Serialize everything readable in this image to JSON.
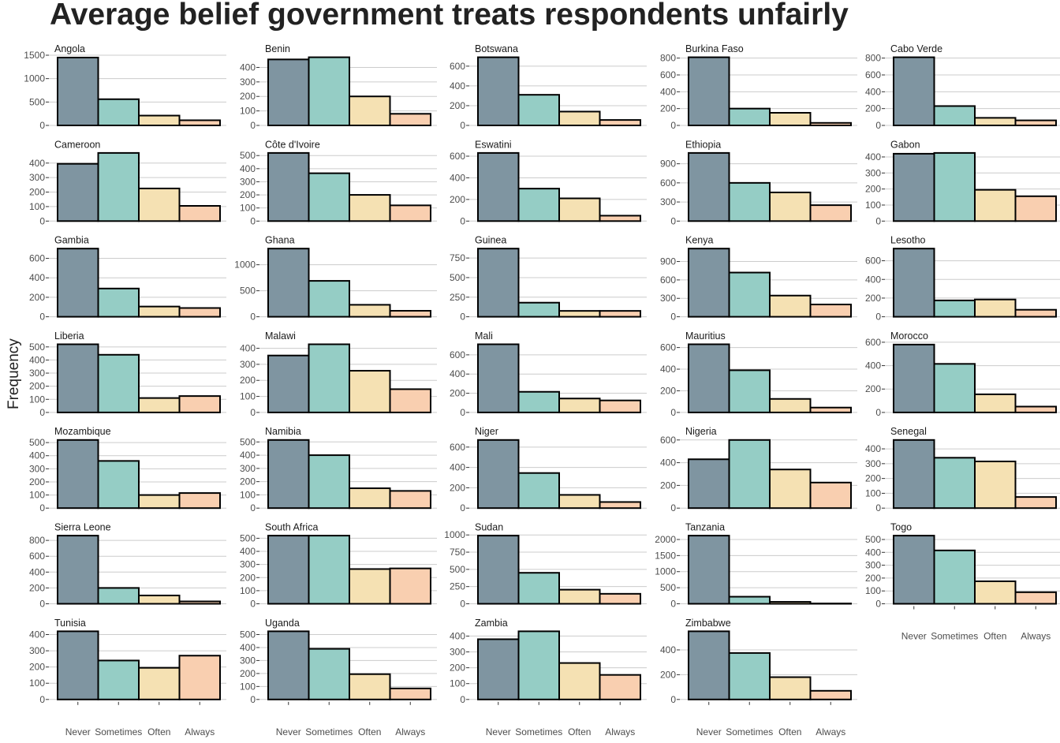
{
  "chart_data": {
    "type": "bar",
    "title": "Average belief government treats respondents unfairly",
    "xlabel": "",
    "ylabel": "Frequency",
    "categories": [
      "Never",
      "Sometimes",
      "Often",
      "Always"
    ],
    "colors": [
      "#7f95a1",
      "#95cdc5",
      "#f5e1b3",
      "#f9cfb0"
    ],
    "grid": "horizontal major",
    "facet_columns": 5,
    "facets": [
      {
        "name": "Angola",
        "values": [
          1450,
          560,
          210,
          110
        ],
        "yticks": [
          0,
          500,
          1000,
          1500
        ]
      },
      {
        "name": "Benin",
        "values": [
          455,
          470,
          200,
          80
        ],
        "yticks": [
          0,
          100,
          200,
          300,
          400
        ]
      },
      {
        "name": "Botswana",
        "values": [
          690,
          310,
          140,
          55
        ],
        "yticks": [
          0,
          200,
          400,
          600
        ]
      },
      {
        "name": "Burkina Faso",
        "values": [
          810,
          200,
          150,
          30
        ],
        "yticks": [
          0,
          200,
          400,
          600,
          800
        ]
      },
      {
        "name": "Cabo Verde",
        "values": [
          810,
          230,
          90,
          60
        ],
        "yticks": [
          0,
          200,
          400,
          600,
          800
        ]
      },
      {
        "name": "Cameroon",
        "values": [
          395,
          470,
          225,
          105
        ],
        "yticks": [
          0,
          100,
          200,
          300,
          400
        ]
      },
      {
        "name": "Côte d'Ivoire",
        "values": [
          520,
          365,
          200,
          120
        ],
        "yticks": [
          0,
          100,
          200,
          300,
          400,
          500
        ]
      },
      {
        "name": "Eswatini",
        "values": [
          630,
          300,
          210,
          50
        ],
        "yticks": [
          0,
          200,
          400,
          600
        ]
      },
      {
        "name": "Ethiopia",
        "values": [
          1070,
          600,
          450,
          250
        ],
        "yticks": [
          0,
          300,
          600,
          900
        ]
      },
      {
        "name": "Gabon",
        "values": [
          420,
          425,
          195,
          155
        ],
        "yticks": [
          0,
          100,
          200,
          300,
          400
        ]
      },
      {
        "name": "Gambia",
        "values": [
          700,
          290,
          105,
          90
        ],
        "yticks": [
          0,
          200,
          400,
          600
        ]
      },
      {
        "name": "Ghana",
        "values": [
          1310,
          690,
          230,
          115
        ],
        "yticks": [
          0,
          500,
          1000
        ]
      },
      {
        "name": "Guinea",
        "values": [
          870,
          180,
          75,
          75
        ],
        "yticks": [
          0,
          250,
          500,
          750
        ]
      },
      {
        "name": "Kenya",
        "values": [
          1110,
          720,
          345,
          200
        ],
        "yticks": [
          0,
          300,
          600,
          900
        ]
      },
      {
        "name": "Lesotho",
        "values": [
          730,
          175,
          185,
          75
        ],
        "yticks": [
          0,
          200,
          400,
          600
        ]
      },
      {
        "name": "Liberia",
        "values": [
          520,
          440,
          110,
          125
        ],
        "yticks": [
          0,
          100,
          200,
          300,
          400,
          500
        ]
      },
      {
        "name": "Malawi",
        "values": [
          355,
          425,
          260,
          145
        ],
        "yticks": [
          0,
          100,
          200,
          300,
          400
        ]
      },
      {
        "name": "Mali",
        "values": [
          710,
          215,
          145,
          125
        ],
        "yticks": [
          0,
          200,
          400,
          600
        ]
      },
      {
        "name": "Mauritius",
        "values": [
          630,
          390,
          125,
          45
        ],
        "yticks": [
          0,
          200,
          400,
          600
        ]
      },
      {
        "name": "Morocco",
        "values": [
          580,
          415,
          155,
          50
        ],
        "yticks": [
          0,
          200,
          400,
          600
        ]
      },
      {
        "name": "Mozambique",
        "values": [
          520,
          360,
          100,
          115
        ],
        "yticks": [
          0,
          100,
          200,
          300,
          400,
          500
        ]
      },
      {
        "name": "Namibia",
        "values": [
          515,
          400,
          150,
          130
        ],
        "yticks": [
          0,
          100,
          200,
          300,
          400,
          500
        ]
      },
      {
        "name": "Niger",
        "values": [
          670,
          345,
          130,
          60
        ],
        "yticks": [
          0,
          200,
          400,
          600
        ]
      },
      {
        "name": "Nigeria",
        "values": [
          430,
          600,
          340,
          225
        ],
        "yticks": [
          0,
          200,
          400,
          600
        ]
      },
      {
        "name": "Senegal",
        "values": [
          460,
          340,
          315,
          75
        ],
        "yticks": [
          0,
          100,
          200,
          300,
          400
        ]
      },
      {
        "name": "Sierra Leone",
        "values": [
          860,
          200,
          105,
          30
        ],
        "yticks": [
          0,
          200,
          400,
          600,
          800
        ]
      },
      {
        "name": "South Africa",
        "values": [
          520,
          520,
          265,
          270
        ],
        "yticks": [
          0,
          100,
          200,
          300,
          400,
          500
        ]
      },
      {
        "name": "Sudan",
        "values": [
          990,
          450,
          205,
          145
        ],
        "yticks": [
          0,
          250,
          500,
          750,
          1000
        ]
      },
      {
        "name": "Tanzania",
        "values": [
          2120,
          220,
          60,
          10
        ],
        "yticks": [
          0,
          500,
          1000,
          1500,
          2000
        ]
      },
      {
        "name": "Togo",
        "values": [
          530,
          415,
          175,
          90
        ],
        "yticks": [
          0,
          100,
          200,
          300,
          400,
          500
        ]
      },
      {
        "name": "Tunisia",
        "values": [
          420,
          240,
          195,
          270
        ],
        "yticks": [
          0,
          100,
          200,
          300,
          400
        ]
      },
      {
        "name": "Uganda",
        "values": [
          525,
          390,
          195,
          85
        ],
        "yticks": [
          0,
          100,
          200,
          300,
          400,
          500
        ]
      },
      {
        "name": "Zambia",
        "values": [
          380,
          430,
          230,
          155
        ],
        "yticks": [
          0,
          100,
          200,
          300,
          400
        ]
      },
      {
        "name": "Zimbabwe",
        "values": [
          550,
          375,
          180,
          70
        ],
        "yticks": [
          0,
          200,
          400
        ]
      }
    ]
  }
}
